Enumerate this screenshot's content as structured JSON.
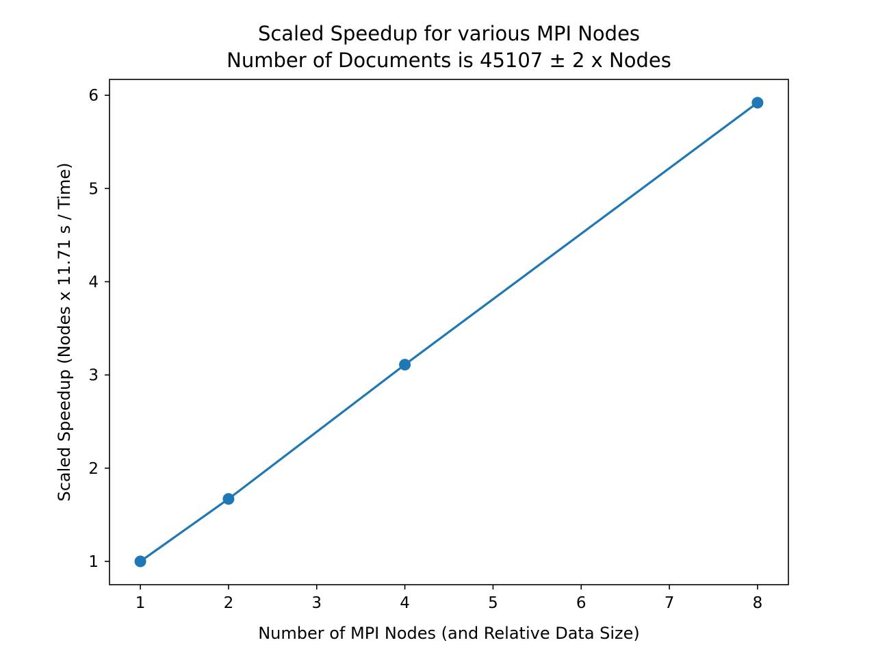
{
  "chart_data": {
    "type": "line",
    "title": "Scaled Speedup for various MPI Nodes",
    "subtitle": "Number of Documents is 45107 ± 2 x  Nodes",
    "xlabel": "Number of MPI Nodes (and Relative Data Size)",
    "ylabel": "Scaled Speedup (Nodes x 11.71 s / Time)",
    "xlim": [
      0.65,
      8.35
    ],
    "ylim": [
      0.75,
      6.17
    ],
    "x_ticks": [
      1,
      2,
      3,
      4,
      5,
      6,
      7,
      8
    ],
    "y_ticks": [
      1,
      2,
      3,
      4,
      5,
      6
    ],
    "grid": false,
    "series": [
      {
        "x": [
          1,
          2,
          4,
          8
        ],
        "values": [
          1.0,
          1.67,
          3.11,
          5.92
        ],
        "color": "#1f77b4",
        "marker": "circle"
      }
    ]
  }
}
